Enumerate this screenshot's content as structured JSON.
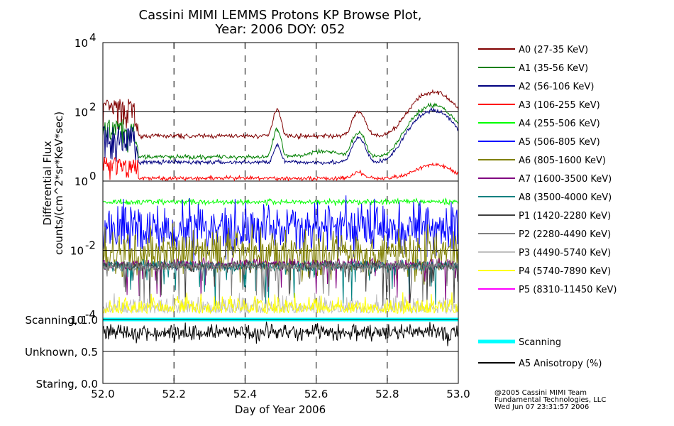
{
  "chart_data": {
    "type": "line",
    "title_line1": "Cassini MIMI LEMMS Protons KP Browse Plot,",
    "title_line2": "Year: 2006 DOY: 052",
    "xlabel": "Day of Year 2006",
    "ylabel_line1": "Differential Flux",
    "ylabel_line2": "counts/(cm^2*sr*KeV*sec)",
    "x_range": [
      52.0,
      53.0
    ],
    "x_ticks": [
      "52.0",
      "52.2",
      "52.4",
      "52.6",
      "52.8",
      "53.0"
    ],
    "x_tick_values": [
      52.0,
      52.2,
      52.4,
      52.6,
      52.8,
      53.0
    ],
    "y_scale": "log",
    "y_range": [
      0.0001,
      10000
    ],
    "y_ticks": [
      {
        "value": 10000,
        "base": "10",
        "exp": "4"
      },
      {
        "value": 100,
        "base": "10",
        "exp": "2"
      },
      {
        "value": 1,
        "base": "10",
        "exp": "0"
      },
      {
        "value": 0.01,
        "base": "10",
        "exp": "-2"
      },
      {
        "value": 0.0001,
        "base": "10",
        "exp": "-4"
      }
    ],
    "lower_panel_labels": [
      "Scanning, 1.0",
      "Unknown, 0.5",
      "Staring, 0.0"
    ],
    "lower_panel_range": [
      0.0,
      1.0
    ],
    "grid": "dashed vertical lines at x ticks; solid horizontal lines at decades",
    "series": [
      {
        "name": "A0 (27-35 KeV)",
        "color": "#800000",
        "base": 20,
        "profile": "A0"
      },
      {
        "name": "A1 (35-56 KeV)",
        "color": "#008000",
        "base": 5,
        "profile": "A1"
      },
      {
        "name": "A2 (56-106 KeV)",
        "color": "#000080",
        "base": 3.5,
        "profile": "A2"
      },
      {
        "name": "A3 (106-255 KeV)",
        "color": "#ff0000",
        "base": 1.2,
        "profile": "A3"
      },
      {
        "name": "A4 (255-506 KeV)",
        "color": "#00ff00",
        "base": 0.25,
        "profile": "flat"
      },
      {
        "name": "A5 (506-805 KeV)",
        "color": "#0000ff",
        "base": 0.045,
        "profile": "noisy"
      },
      {
        "name": "A6 (805-1600 KeV)",
        "color": "#808000",
        "base": 0.008,
        "profile": "noisy"
      },
      {
        "name": "A7 (1600-3500 KeV)",
        "color": "#800080",
        "base": 0.004,
        "profile": "spiky"
      },
      {
        "name": "A8 (3500-4000 KeV)",
        "color": "#008080",
        "base": 0.0035,
        "profile": "spiky"
      },
      {
        "name": "P1 (1420-2280 KeV)",
        "color": "#404040",
        "base": 0.0035,
        "profile": "spiky"
      },
      {
        "name": "P2 (2280-4490 KeV)",
        "color": "#808080",
        "base": 0.0035,
        "profile": "spiky"
      },
      {
        "name": "P3 (4490-5740 KeV)",
        "color": "#c0c0c0",
        "base": 0.00015,
        "profile": "low"
      },
      {
        "name": "P4 (5740-7890 KeV)",
        "color": "#ffff00",
        "base": 0.00015,
        "profile": "low"
      },
      {
        "name": "P5 (8310-11450 KeV)",
        "color": "#ff00ff",
        "base": 0.0001,
        "profile": "none"
      }
    ],
    "lower_series": [
      {
        "name": "Scanning",
        "color": "#00ffff",
        "value": 1.0
      },
      {
        "name": "A5 Anisotropy (%)",
        "color": "#000000",
        "value": 0.8
      }
    ]
  },
  "footer": {
    "line1": "@2005 Cassini MIMI Team",
    "line2": "Fundamental Technologies, LLC",
    "line3": "Wed Jun 07 23:31:57 2006"
  }
}
